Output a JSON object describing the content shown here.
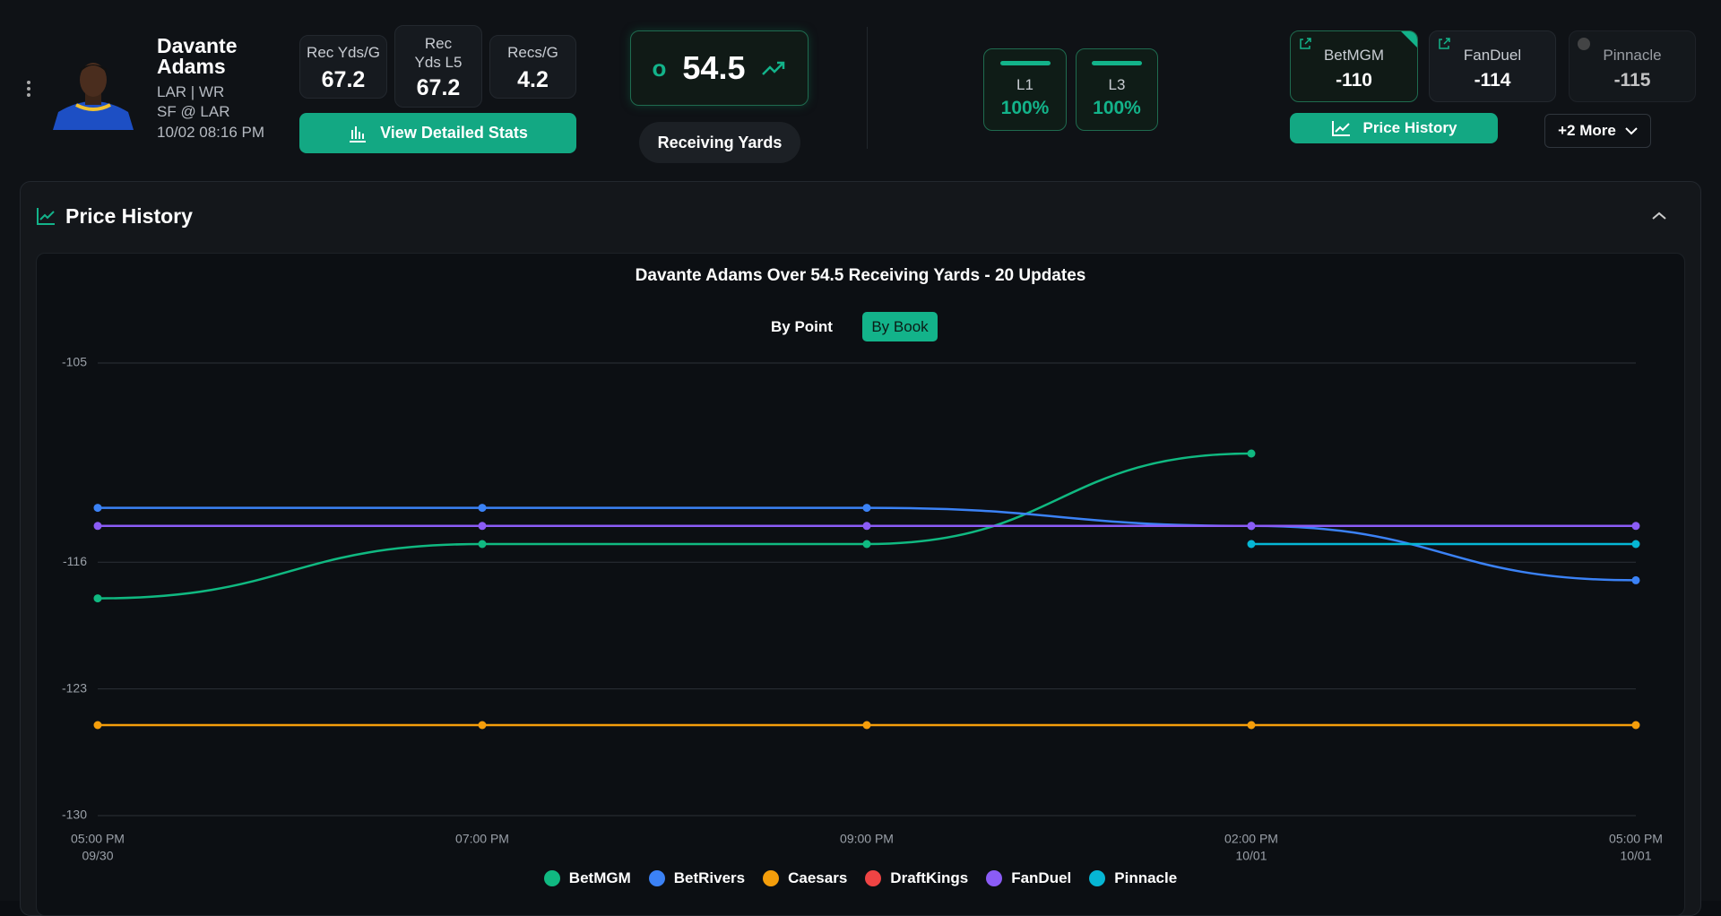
{
  "player": {
    "name": "Davante Adams",
    "team_pos": "LAR | WR",
    "matchup": "SF @ LAR",
    "time": "10/02 08:16 PM"
  },
  "stats": [
    {
      "label": "Rec Yds/G",
      "value": 67.2
    },
    {
      "label": "Rec Yds L5",
      "value": 67.2
    },
    {
      "label": "Recs/G",
      "value": 4.2
    }
  ],
  "stats_button": "View Detailed Stats",
  "line": {
    "side": "o",
    "value": 54.5,
    "market": "Receiving Yards"
  },
  "hit_rates": [
    {
      "label": "L1",
      "value": "100%"
    },
    {
      "label": "L3",
      "value": "100%"
    }
  ],
  "books": [
    {
      "name": "BetMGM",
      "price": -110
    },
    {
      "name": "FanDuel",
      "price": -114
    },
    {
      "name": "Pinnacle",
      "price": -115
    }
  ],
  "price_history_button": "Price History",
  "more_button": "+2 More",
  "section_title": "Price History",
  "toggle": [
    "By Point",
    "By Book"
  ],
  "chart_data": {
    "type": "line",
    "title": "Davante Adams Over 54.5 Receiving Yards - 20 Updates",
    "categories": [
      [
        "05:00 PM",
        "09/30"
      ],
      [
        "07:00 PM"
      ],
      [
        "09:00 PM"
      ],
      [
        "02:00 PM",
        "10/01"
      ],
      [
        "05:00 PM",
        "10/01"
      ]
    ],
    "series": [
      {
        "name": "BetMGM",
        "color": "#10b981",
        "values": [
          -118,
          -115,
          -115,
          -110,
          null
        ]
      },
      {
        "name": "BetRivers",
        "color": "#3b82f6",
        "values": [
          -113,
          -113,
          -113,
          -114,
          -117
        ]
      },
      {
        "name": "Caesars",
        "color": "#f59e0b",
        "values": [
          -125,
          -125,
          -125,
          -125,
          -125
        ]
      },
      {
        "name": "DraftKings",
        "color": "#ef4444",
        "values": [
          null,
          null,
          null,
          null,
          null
        ]
      },
      {
        "name": "FanDuel",
        "color": "#8b5cf6",
        "values": [
          -114,
          -114,
          -114,
          -114,
          -114
        ]
      },
      {
        "name": "Pinnacle",
        "color": "#06b6d4",
        "values": [
          null,
          null,
          null,
          -115,
          -115
        ]
      }
    ],
    "ylim": [
      -130,
      -105
    ],
    "yticks": [
      -105,
      -116,
      -123,
      -130
    ],
    "grid": true
  }
}
